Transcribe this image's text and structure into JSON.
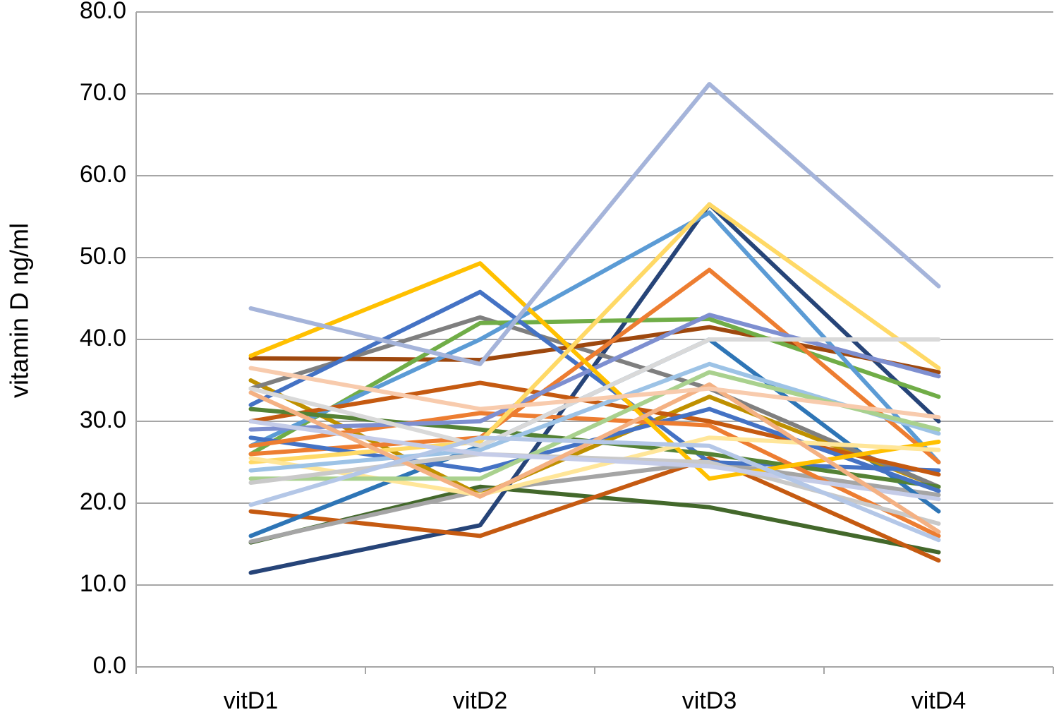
{
  "chart_data": {
    "type": "line",
    "y_label": "vitamin D ng/ml",
    "categories": [
      "vitD1",
      "vitD2",
      "vitD3",
      "vitD4"
    ],
    "ylim": [
      0,
      80
    ],
    "yticks": [
      {
        "value": 0,
        "label": "0.0"
      },
      {
        "value": 10,
        "label": "10.0"
      },
      {
        "value": 20,
        "label": "20.0"
      },
      {
        "value": 30,
        "label": "30.0"
      },
      {
        "value": 40,
        "label": "40.0"
      },
      {
        "value": 50,
        "label": "50.0"
      },
      {
        "value": 60,
        "label": "60.0"
      },
      {
        "value": 70,
        "label": "70.0"
      },
      {
        "value": 80,
        "label": "80.0"
      }
    ],
    "grid": true,
    "series": [
      {
        "color": "#264478",
        "values": [
          11.5,
          17.3,
          56.5,
          30
        ]
      },
      {
        "color": "#43682b",
        "values": [
          15.2,
          22,
          19.5,
          14
        ]
      },
      {
        "color": "#c55a11",
        "values": [
          19,
          16,
          25.5,
          13
        ]
      },
      {
        "color": "#a5a5a5",
        "values": [
          15.3,
          21.5,
          25,
          21
        ]
      },
      {
        "color": "#2e75b6",
        "values": [
          16,
          27,
          40,
          19
        ]
      },
      {
        "color": "#bf9000",
        "values": [
          35,
          21,
          33,
          22
        ]
      },
      {
        "color": "#7f7f7f",
        "values": [
          34,
          42.7,
          34,
          22
        ]
      },
      {
        "color": "#9e480e",
        "values": [
          37.7,
          37.5,
          41.5,
          36
        ]
      },
      {
        "color": "#70ad47",
        "values": [
          26,
          42,
          42.5,
          33
        ]
      },
      {
        "color": "#4472c4",
        "values": [
          32,
          45.8,
          25,
          24
        ]
      },
      {
        "color": "#5b9bd5",
        "values": [
          27,
          40,
          55.5,
          25
        ]
      },
      {
        "color": "#ed7d31",
        "values": [
          26,
          28,
          48.5,
          25
        ]
      },
      {
        "color": "#c55a11",
        "values": [
          30,
          34.7,
          30,
          23.5
        ]
      },
      {
        "color": "#548235",
        "values": [
          31.5,
          29,
          26,
          22
        ]
      },
      {
        "color": "#4472c4",
        "values": [
          28,
          24,
          31.5,
          21.5
        ]
      },
      {
        "color": "#ed7d31",
        "values": [
          27,
          31,
          29.5,
          16
        ]
      },
      {
        "color": "#7e8fd0",
        "values": [
          29,
          30,
          43,
          35.5
        ]
      },
      {
        "color": "#ffc000",
        "values": [
          38,
          49.3,
          23,
          27.5
        ]
      },
      {
        "color": "#ffd966",
        "values": [
          25,
          27.5,
          56.5,
          36.5
        ]
      },
      {
        "color": "#ffe699",
        "values": [
          25.5,
          21,
          28,
          26.5
        ]
      },
      {
        "color": "#9dc3e6",
        "values": [
          24,
          26.5,
          37,
          28.5
        ]
      },
      {
        "color": "#a9d18e",
        "values": [
          23,
          23,
          36,
          29
        ]
      },
      {
        "color": "#c9c9c9",
        "values": [
          22.5,
          26,
          25,
          17.5
        ]
      },
      {
        "color": "#c5cce8",
        "values": [
          30,
          26,
          24.5,
          20.5
        ]
      },
      {
        "color": "#d9d9d9",
        "values": [
          34,
          27,
          40,
          40
        ]
      },
      {
        "color": "#f4b183",
        "values": [
          33.5,
          20.8,
          34.5,
          16.5
        ]
      },
      {
        "color": "#f8cbad",
        "values": [
          36.5,
          31.5,
          34,
          30.5
        ]
      },
      {
        "color": "#b4c7e7",
        "values": [
          19.8,
          28,
          27,
          15.5
        ]
      },
      {
        "color": "#a5b4da",
        "values": [
          43.8,
          37,
          71.2,
          46.5
        ]
      }
    ]
  }
}
